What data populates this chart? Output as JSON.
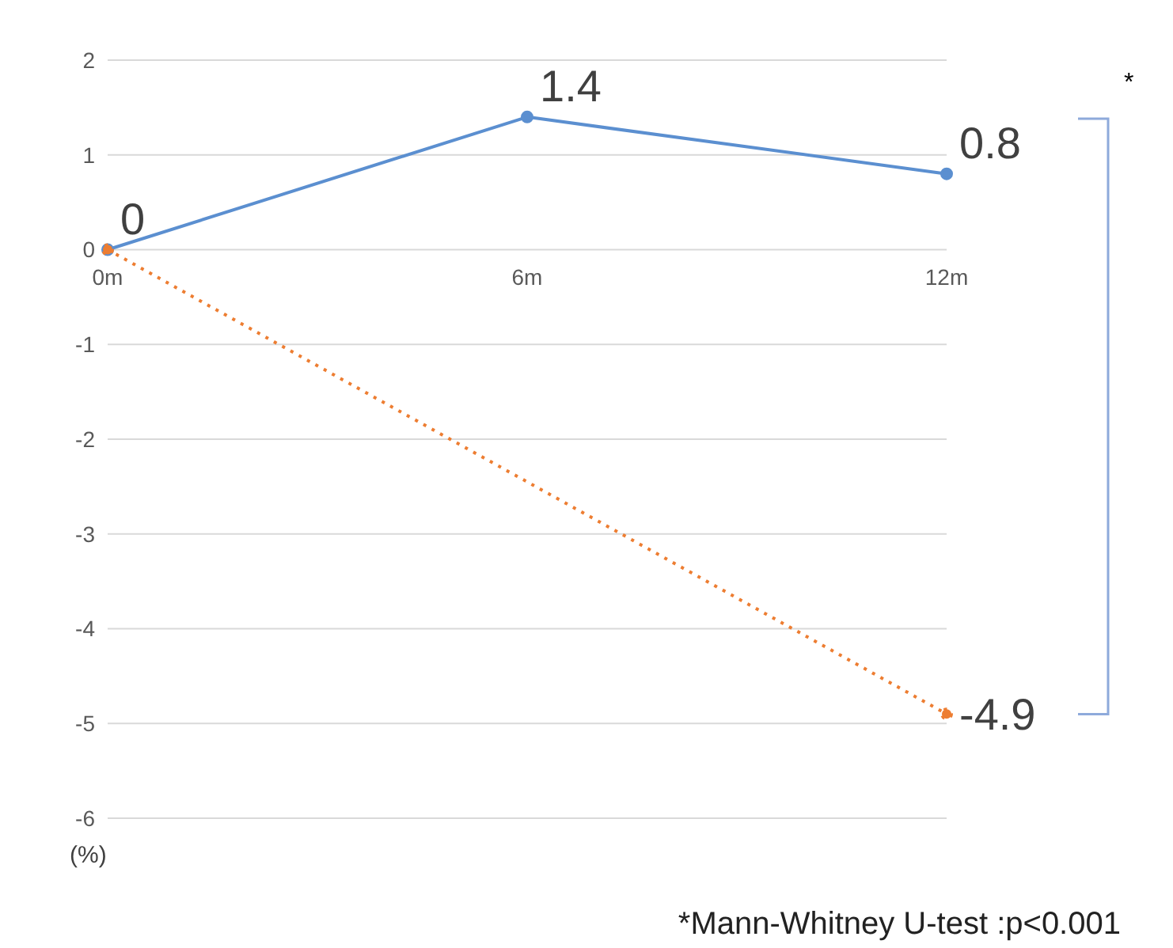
{
  "chart_data": {
    "type": "line",
    "categories": [
      "0m",
      "6m",
      "12m"
    ],
    "series": [
      {
        "color": "#5b8fd0",
        "values": [
          0,
          1.4,
          0.8
        ],
        "line_style": "solid",
        "value_labels": [
          null,
          "1.4",
          "0.8"
        ]
      },
      {
        "color": "#ed7d31",
        "values": [
          0,
          null,
          -4.9
        ],
        "line_style": "dotted",
        "value_labels": [
          "0",
          null,
          "-4.9"
        ]
      }
    ],
    "ylim": [
      -6,
      2
    ],
    "yticks": [
      -6,
      -5,
      -4,
      -3,
      -2,
      -1,
      0,
      1,
      2
    ],
    "grid": "y",
    "marker": "circle",
    "ylabel": "(%)",
    "annotations": [
      "*",
      "*Mann-Whitney U-test :p<0.001"
    ]
  }
}
